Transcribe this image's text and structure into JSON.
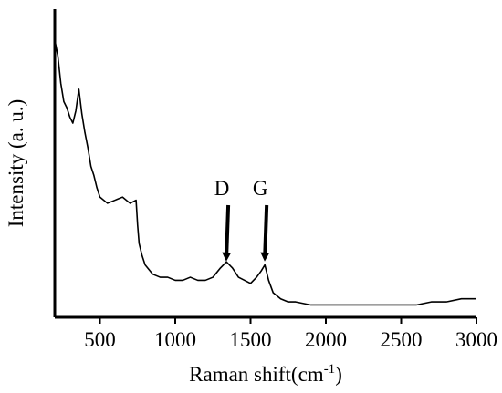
{
  "chart_data": {
    "type": "line",
    "xlabel": "Raman shift(cm",
    "xlabel_superscript": "-1",
    "xlabel_suffix": ")",
    "ylabel": "Intensity (a. u.)",
    "xlim": [
      200,
      3000
    ],
    "ylim": [
      0,
      1
    ],
    "y_tick_labels_shown": false,
    "grid": false,
    "x_ticks": [
      500,
      1000,
      1500,
      2000,
      2500,
      3000
    ],
    "x_tick_labels": [
      "500",
      "1000",
      "1500",
      "2000",
      "2500",
      "3000"
    ],
    "annotations": [
      {
        "text": "D",
        "x": 1340,
        "y": 0.19
      },
      {
        "text": "G",
        "x": 1595,
        "y": 0.19
      }
    ],
    "series": [
      {
        "color": "#000000",
        "x": [
          200,
          220,
          240,
          260,
          280,
          300,
          320,
          340,
          360,
          380,
          400,
          420,
          440,
          460,
          480,
          500,
          550,
          600,
          650,
          700,
          740,
          750,
          760,
          780,
          800,
          850,
          900,
          950,
          1000,
          1050,
          1100,
          1150,
          1200,
          1250,
          1300,
          1340,
          1380,
          1420,
          1460,
          1500,
          1540,
          1570,
          1595,
          1620,
          1650,
          1700,
          1750,
          1800,
          1900,
          2000,
          2100,
          2200,
          2300,
          2400,
          2500,
          2600,
          2700,
          2800,
          2900,
          3000
        ],
        "y": [
          0.9,
          0.85,
          0.76,
          0.7,
          0.68,
          0.65,
          0.63,
          0.67,
          0.74,
          0.66,
          0.6,
          0.55,
          0.49,
          0.46,
          0.42,
          0.39,
          0.37,
          0.38,
          0.39,
          0.37,
          0.38,
          0.3,
          0.24,
          0.2,
          0.17,
          0.14,
          0.13,
          0.13,
          0.12,
          0.12,
          0.13,
          0.12,
          0.12,
          0.13,
          0.16,
          0.18,
          0.16,
          0.13,
          0.12,
          0.11,
          0.13,
          0.15,
          0.17,
          0.12,
          0.08,
          0.06,
          0.05,
          0.05,
          0.04,
          0.04,
          0.04,
          0.04,
          0.04,
          0.04,
          0.04,
          0.04,
          0.05,
          0.05,
          0.06,
          0.06
        ]
      }
    ]
  }
}
